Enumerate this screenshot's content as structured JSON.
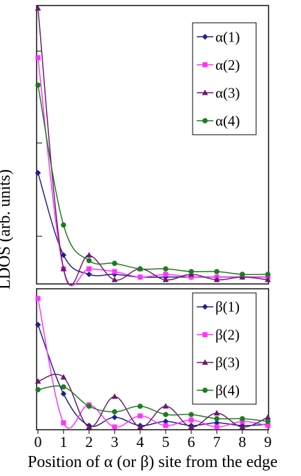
{
  "chart_data": [
    {
      "type": "line",
      "panel": "top",
      "x": [
        0,
        1,
        2,
        3,
        4,
        5,
        6,
        7,
        8,
        9
      ],
      "ylabel": "LDOS  (arb. units)",
      "ylim": [
        0,
        1
      ],
      "xlim": [
        0,
        9
      ],
      "grid": false,
      "legend_position": "top-right",
      "series": [
        {
          "name": "α(1)",
          "color": "#1f1f8f",
          "marker": "diamond",
          "values": [
            0.4,
            0.1,
            0.03,
            0.03,
            0.02,
            0.02,
            0.02,
            0.02,
            0.02,
            0.02
          ]
        },
        {
          "name": "α(2)",
          "color": "#ff33ff",
          "marker": "square",
          "values": [
            0.82,
            0.05,
            0.05,
            0.04,
            0.02,
            0.03,
            0.02,
            0.02,
            0.02,
            0.02
          ]
        },
        {
          "name": "α(3)",
          "color": "#6a1a6e",
          "marker": "triangle",
          "values": [
            1.0,
            0.05,
            0.1,
            0.01,
            0.05,
            0.01,
            0.03,
            0.01,
            0.02,
            0.01
          ]
        },
        {
          "name": "α(4)",
          "color": "#1f7a1f",
          "marker": "circle",
          "values": [
            0.72,
            0.21,
            0.08,
            0.07,
            0.05,
            0.05,
            0.04,
            0.04,
            0.03,
            0.03
          ]
        }
      ]
    },
    {
      "type": "line",
      "panel": "bottom",
      "x": [
        0,
        1,
        2,
        3,
        4,
        5,
        6,
        7,
        8,
        9
      ],
      "xticks": [
        "0",
        "1",
        "2",
        "3",
        "4",
        "5",
        "6",
        "7",
        "8",
        "9"
      ],
      "xlabel": "Position of α (or β) site from the edge",
      "ylim": [
        0,
        1
      ],
      "xlim": [
        0,
        9
      ],
      "grid": false,
      "legend_position": "top-right",
      "series": [
        {
          "name": "β(1)",
          "color": "#1f1f8f",
          "marker": "diamond",
          "values": [
            0.75,
            0.25,
            0.02,
            0.08,
            0.02,
            0.05,
            0.02,
            0.04,
            0.02,
            0.03
          ]
        },
        {
          "name": "β(2)",
          "color": "#ff33ff",
          "marker": "square",
          "values": [
            0.94,
            0.04,
            0.17,
            0.01,
            0.09,
            0.02,
            0.06,
            0.01,
            0.05,
            0.02
          ]
        },
        {
          "name": "β(3)",
          "color": "#6a1a6e",
          "marker": "triangle",
          "values": [
            0.34,
            0.37,
            0.01,
            0.23,
            0.01,
            0.16,
            0.01,
            0.11,
            0.01,
            0.08
          ]
        },
        {
          "name": "β(4)",
          "color": "#1f7a1f",
          "marker": "circle",
          "values": [
            0.28,
            0.3,
            0.16,
            0.12,
            0.16,
            0.1,
            0.1,
            0.07,
            0.07,
            0.05
          ]
        }
      ]
    }
  ]
}
